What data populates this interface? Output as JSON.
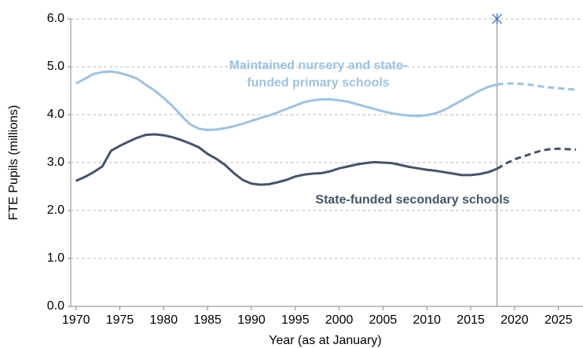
{
  "chart_data": {
    "type": "line",
    "x_label": "Year (as at January)",
    "y_label": "FTE Pupils (millions)",
    "x": [
      1970,
      1971,
      1972,
      1973,
      1974,
      1975,
      1976,
      1977,
      1978,
      1979,
      1980,
      1981,
      1982,
      1983,
      1984,
      1985,
      1986,
      1987,
      1988,
      1989,
      1990,
      1991,
      1992,
      1993,
      1994,
      1995,
      1996,
      1997,
      1998,
      1999,
      2000,
      2001,
      2002,
      2003,
      2004,
      2005,
      2006,
      2007,
      2008,
      2009,
      2010,
      2011,
      2012,
      2013,
      2014,
      2015,
      2016,
      2017,
      2018,
      2019,
      2020,
      2021,
      2022,
      2023,
      2024,
      2025,
      2026,
      2027
    ],
    "series": [
      {
        "color": "#9cc2e5",
        "dashed": false,
        "values": [
          4.65,
          4.75,
          4.85,
          4.89,
          4.9,
          4.87,
          4.82,
          4.75,
          4.62,
          4.5,
          4.35,
          4.18,
          3.98,
          3.8,
          3.71,
          3.68,
          3.69,
          3.72,
          3.76,
          3.81,
          3.87,
          3.93,
          3.98,
          4.05,
          4.12,
          4.19,
          4.26,
          4.3,
          4.32,
          4.32,
          4.3,
          4.27,
          4.22,
          4.17,
          4.12,
          4.07,
          4.03,
          4.0,
          3.98,
          3.97,
          3.99,
          4.03,
          4.1,
          4.2,
          4.3,
          4.4,
          4.5,
          4.58,
          4.63,
          null,
          null,
          null,
          null,
          null,
          null,
          null,
          null,
          null
        ]
      },
      {
        "color": "#9cc2e5",
        "dashed": true,
        "values": [
          null,
          null,
          null,
          null,
          null,
          null,
          null,
          null,
          null,
          null,
          null,
          null,
          null,
          null,
          null,
          null,
          null,
          null,
          null,
          null,
          null,
          null,
          null,
          null,
          null,
          null,
          null,
          null,
          null,
          null,
          null,
          null,
          null,
          null,
          null,
          null,
          null,
          null,
          null,
          null,
          null,
          null,
          null,
          null,
          null,
          null,
          null,
          null,
          4.63,
          4.65,
          4.65,
          4.64,
          4.62,
          4.59,
          4.57,
          4.55,
          4.54,
          4.52
        ]
      },
      {
        "color": "#44546a",
        "dashed": false,
        "values": [
          2.62,
          2.7,
          2.8,
          2.92,
          3.25,
          3.35,
          3.44,
          3.52,
          3.58,
          3.59,
          3.57,
          3.53,
          3.47,
          3.4,
          3.32,
          3.18,
          3.08,
          2.95,
          2.78,
          2.64,
          2.56,
          2.54,
          2.55,
          2.59,
          2.64,
          2.71,
          2.75,
          2.77,
          2.78,
          2.82,
          2.88,
          2.92,
          2.96,
          2.99,
          3.01,
          3.0,
          2.99,
          2.95,
          2.91,
          2.88,
          2.85,
          2.83,
          2.8,
          2.77,
          2.74,
          2.74,
          2.76,
          2.8,
          2.87,
          null,
          null,
          null,
          null,
          null,
          null,
          null,
          null,
          null
        ]
      },
      {
        "color": "#44546a",
        "dashed": true,
        "values": [
          null,
          null,
          null,
          null,
          null,
          null,
          null,
          null,
          null,
          null,
          null,
          null,
          null,
          null,
          null,
          null,
          null,
          null,
          null,
          null,
          null,
          null,
          null,
          null,
          null,
          null,
          null,
          null,
          null,
          null,
          null,
          null,
          null,
          null,
          null,
          null,
          null,
          null,
          null,
          null,
          null,
          null,
          null,
          null,
          null,
          null,
          null,
          null,
          2.87,
          2.98,
          3.07,
          3.13,
          3.19,
          3.25,
          3.28,
          3.29,
          3.28,
          3.27
        ]
      }
    ],
    "annotations": [
      {
        "text": "Maintained nursery and state-",
        "color": "#9cc2e5"
      },
      {
        "text": "funded primary schools",
        "color": "#9cc2e5"
      },
      {
        "text": "State-funded secondary schools",
        "color": "#44546a"
      }
    ],
    "vline": 2018,
    "marker": {
      "x": 2018,
      "y": 6,
      "color": "#4472c4"
    },
    "xlim": [
      1969.4,
      2027.8
    ],
    "ylim": [
      0,
      6
    ],
    "xticks": [
      1970,
      1975,
      1980,
      1985,
      1990,
      1995,
      2000,
      2005,
      2010,
      2015,
      2020,
      2025
    ],
    "yticks": [
      {
        "value": 0,
        "label": "0.0"
      },
      {
        "value": 1,
        "label": "1.0"
      },
      {
        "value": 2,
        "label": "2.0"
      },
      {
        "value": 3,
        "label": "3.0"
      },
      {
        "value": 4,
        "label": "4.0"
      },
      {
        "value": 5,
        "label": "5.0"
      },
      {
        "value": 6,
        "label": "6.0"
      }
    ],
    "grid": true
  }
}
